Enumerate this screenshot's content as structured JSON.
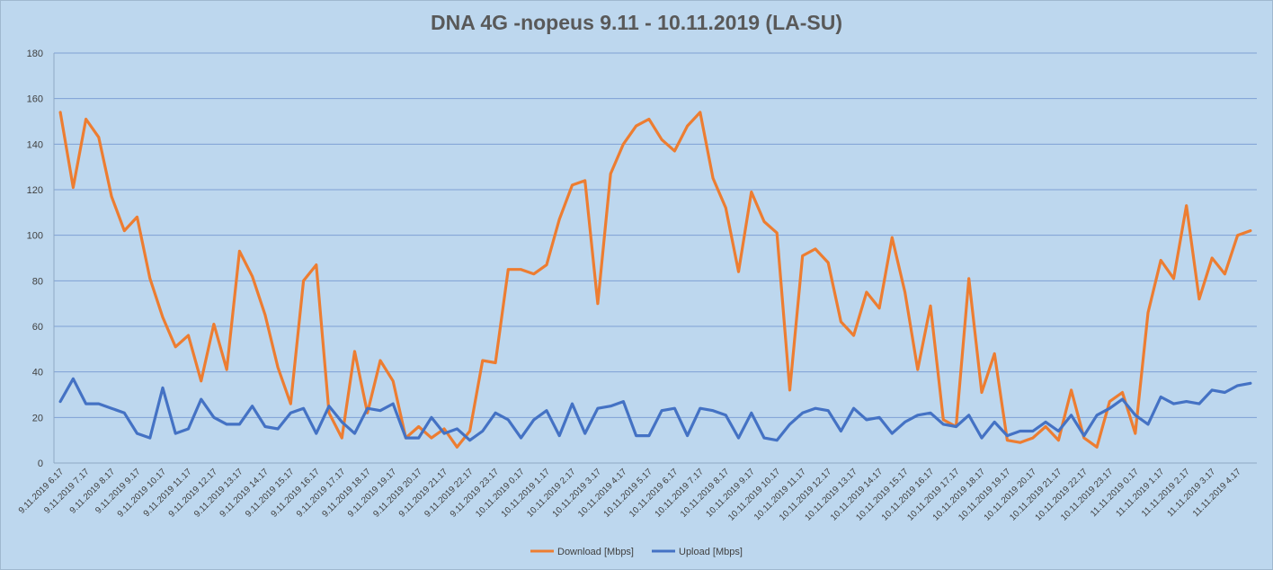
{
  "chart_data": {
    "type": "line",
    "title": "DNA 4G -nopeus 9.11 - 10.11.2019 (LA-SU)",
    "xlabel": "",
    "ylabel": "",
    "ylim": [
      0,
      180
    ],
    "yticks": [
      0,
      20,
      40,
      60,
      80,
      100,
      120,
      140,
      160,
      180
    ],
    "grid": true,
    "legend_position": "bottom-center",
    "categories": [
      "9.11.2019 6.17",
      "9.11.2019 6.47",
      "9.11.2019 7.17",
      "9.11.2019 7.47",
      "9.11.2019 8.17",
      "9.11.2019 8.47",
      "9.11.2019 9.17",
      "9.11.2019 9.47",
      "9.11.2019 10.17",
      "9.11.2019 10.47",
      "9.11.2019 11.17",
      "9.11.2019 11.47",
      "9.11.2019 12.17",
      "9.11.2019 12.47",
      "9.11.2019 13.17",
      "9.11.2019 13.47",
      "9.11.2019 14.17",
      "9.11.2019 14.47",
      "9.11.2019 15.17",
      "9.11.2019 15.47",
      "9.11.2019 16.17",
      "9.11.2019 16.47",
      "9.11.2019 17.17",
      "9.11.2019 17.47",
      "9.11.2019 18.17",
      "9.11.2019 18.47",
      "9.11.2019 19.17",
      "9.11.2019 19.47",
      "9.11.2019 20.17",
      "9.11.2019 20.47",
      "9.11.2019 21.17",
      "9.11.2019 21.47",
      "9.11.2019 22.17",
      "9.11.2019 22.47",
      "9.11.2019 23.17",
      "9.11.2019 23.47",
      "10.11.2019 0.17",
      "10.11.2019 0.47",
      "10.11.2019 1.17",
      "10.11.2019 1.47",
      "10.11.2019 2.17",
      "10.11.2019 2.47",
      "10.11.2019 3.17",
      "10.11.2019 3.47",
      "10.11.2019 4.17",
      "10.11.2019 4.47",
      "10.11.2019 5.17",
      "10.11.2019 5.47",
      "10.11.2019 6.17",
      "10.11.2019 6.47",
      "10.11.2019 7.17",
      "10.11.2019 7.47",
      "10.11.2019 8.17",
      "10.11.2019 8.47",
      "10.11.2019 9.17",
      "10.11.2019 9.47",
      "10.11.2019 10.17",
      "10.11.2019 10.47",
      "10.11.2019 11.17",
      "10.11.2019 11.47",
      "10.11.2019 12.17",
      "10.11.2019 12.47",
      "10.11.2019 13.17",
      "10.11.2019 13.47",
      "10.11.2019 14.17",
      "10.11.2019 14.47",
      "10.11.2019 15.17",
      "10.11.2019 15.47",
      "10.11.2019 16.17",
      "10.11.2019 16.47",
      "10.11.2019 17.17",
      "10.11.2019 17.47",
      "10.11.2019 18.17",
      "10.11.2019 18.47",
      "10.11.2019 19.17",
      "10.11.2019 19.47",
      "10.11.2019 20.17",
      "10.11.2019 20.47",
      "10.11.2019 21.17",
      "10.11.2019 21.47",
      "10.11.2019 22.17",
      "10.11.2019 22.47",
      "10.11.2019 23.17",
      "10.11.2019 23.47",
      "11.11.2019 0.17",
      "11.11.2019 0.47",
      "11.11.2019 1.17",
      "11.11.2019 1.47",
      "11.11.2019 2.17",
      "11.11.2019 2.47",
      "11.11.2019 3.17",
      "11.11.2019 3.47",
      "11.11.2019 4.17",
      "11.11.2019 4.47"
    ],
    "label_every": 2,
    "series": [
      {
        "name": "Download [Mbps]",
        "color": "#ed7d31",
        "values": [
          154,
          121,
          151,
          143,
          117,
          102,
          108,
          81,
          64,
          51,
          56,
          36,
          61,
          41,
          93,
          82,
          65,
          42,
          26,
          80,
          87,
          22,
          11,
          49,
          22,
          45,
          36,
          11,
          16,
          11,
          15,
          7,
          14,
          45,
          44,
          85,
          85,
          83,
          87,
          107,
          122,
          124,
          70,
          127,
          140,
          148,
          151,
          142,
          137,
          148,
          154,
          125,
          112,
          84,
          119,
          106,
          101,
          32,
          91,
          94,
          88,
          62,
          56,
          75,
          68,
          99,
          75,
          41,
          69,
          19,
          16,
          81,
          31,
          48,
          10,
          9,
          11,
          16,
          10,
          32,
          11,
          7,
          27,
          31,
          13,
          66,
          89,
          81,
          113,
          72,
          90,
          83,
          100,
          102
        ]
      },
      {
        "name": "Upload [Mbps]",
        "color": "#4472c4",
        "values": [
          27,
          37,
          26,
          26,
          24,
          22,
          13,
          11,
          33,
          13,
          15,
          28,
          20,
          17,
          17,
          25,
          16,
          15,
          22,
          24,
          13,
          25,
          18,
          13,
          24,
          23,
          26,
          11,
          11,
          20,
          13,
          15,
          10,
          14,
          22,
          19,
          11,
          19,
          23,
          12,
          26,
          13,
          24,
          25,
          27,
          12,
          12,
          23,
          24,
          12,
          24,
          23,
          21,
          11,
          22,
          11,
          10,
          17,
          22,
          24,
          23,
          14,
          24,
          19,
          20,
          13,
          18,
          21,
          22,
          17,
          16,
          21,
          11,
          18,
          12,
          14,
          14,
          18,
          14,
          21,
          12,
          21,
          24,
          28,
          21,
          17,
          29,
          26,
          27,
          26,
          32,
          31,
          34,
          35
        ]
      }
    ]
  }
}
